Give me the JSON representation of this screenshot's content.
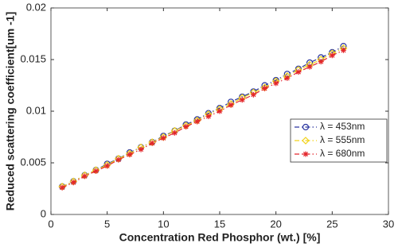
{
  "chart_data": {
    "type": "line",
    "xlabel": "Concentration Red Phosphor (wt.) [%]",
    "ylabel": "Reduced scattering coefficient[um -1]",
    "x": [
      1,
      2,
      3,
      4,
      5,
      6,
      7,
      8,
      9,
      10,
      11,
      12,
      13,
      14,
      15,
      16,
      17,
      18,
      19,
      20,
      21,
      22,
      23,
      24,
      25,
      26
    ],
    "series": [
      {
        "name": "λ = 453nm",
        "color": "#2a35a0",
        "marker": "circle",
        "values": [
          0.0027,
          0.0032,
          0.0038,
          0.0043,
          0.0049,
          0.0054,
          0.006,
          0.0065,
          0.007,
          0.0076,
          0.0081,
          0.0087,
          0.0092,
          0.0098,
          0.0103,
          0.0109,
          0.0114,
          0.0119,
          0.0125,
          0.013,
          0.0136,
          0.0141,
          0.0147,
          0.0152,
          0.0157,
          0.0163
        ]
      },
      {
        "name": "λ = 555nm",
        "color": "#f2d21a",
        "marker": "diamond",
        "values": [
          0.0027,
          0.0032,
          0.0038,
          0.0043,
          0.0048,
          0.0054,
          0.0059,
          0.0065,
          0.007,
          0.0075,
          0.0081,
          0.0086,
          0.0091,
          0.0097,
          0.0102,
          0.0107,
          0.0113,
          0.0118,
          0.0123,
          0.0129,
          0.0134,
          0.014,
          0.0145,
          0.015,
          0.0156,
          0.0161
        ]
      },
      {
        "name": "λ = 680nm",
        "color": "#e3262c",
        "marker": "asterisk",
        "values": [
          0.0026,
          0.0031,
          0.0037,
          0.0042,
          0.0047,
          0.0053,
          0.0058,
          0.0063,
          0.0069,
          0.0074,
          0.0079,
          0.0085,
          0.009,
          0.0095,
          0.01,
          0.0106,
          0.0111,
          0.0116,
          0.0122,
          0.0127,
          0.0132,
          0.0138,
          0.0143,
          0.0148,
          0.0154,
          0.0159
        ]
      }
    ],
    "xlim": [
      0,
      30
    ],
    "xticks": [
      0,
      5,
      10,
      15,
      20,
      25,
      30
    ],
    "ylim": [
      0,
      0.02
    ],
    "yticks": [
      0,
      0.005,
      0.01,
      0.015,
      0.02
    ],
    "grid": false,
    "legend": "right"
  }
}
